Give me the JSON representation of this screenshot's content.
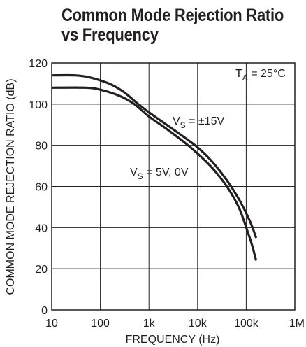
{
  "chart_data": {
    "type": "line",
    "title_lines": [
      "Common Mode Rejection Ratio",
      "vs Frequency"
    ],
    "xlabel": "FREQUENCY (Hz)",
    "ylabel": "COMMON MODE REJECTION RATIO (dB)",
    "xscale": "log",
    "xlim": [
      10,
      1000000
    ],
    "ylim": [
      0,
      120
    ],
    "x_ticks": [
      {
        "value": 10,
        "label": "10"
      },
      {
        "value": 100,
        "label": "100"
      },
      {
        "value": 1000,
        "label": "1k"
      },
      {
        "value": 10000,
        "label": "10k"
      },
      {
        "value": 100000,
        "label": "100k"
      },
      {
        "value": 1000000,
        "label": "1M"
      }
    ],
    "y_ticks": [
      0,
      20,
      40,
      60,
      80,
      100,
      120
    ],
    "grid": true,
    "annotation": {
      "main": "T",
      "sub": "A",
      "rest": " = 25°C"
    },
    "series": [
      {
        "label_main": "V",
        "label_sub": "S",
        "label_rest": " = ±15V",
        "points": [
          [
            10,
            114
          ],
          [
            30,
            114
          ],
          [
            60,
            113
          ],
          [
            150,
            110
          ],
          [
            300,
            106
          ],
          [
            600,
            100
          ],
          [
            1000,
            96
          ],
          [
            2000,
            91
          ],
          [
            4000,
            86
          ],
          [
            10000,
            79
          ],
          [
            20000,
            72
          ],
          [
            40000,
            63
          ],
          [
            70000,
            54
          ],
          [
            100000,
            47
          ],
          [
            130000,
            41
          ],
          [
            160000,
            35
          ]
        ]
      },
      {
        "label_main": "V",
        "label_sub": "S",
        "label_rest": " = 5V, 0V",
        "points": [
          [
            10,
            108
          ],
          [
            50,
            108
          ],
          [
            100,
            107
          ],
          [
            250,
            104
          ],
          [
            500,
            100
          ],
          [
            1000,
            94
          ],
          [
            2000,
            89
          ],
          [
            5000,
            82
          ],
          [
            10000,
            76
          ],
          [
            20000,
            69
          ],
          [
            40000,
            60
          ],
          [
            70000,
            50
          ],
          [
            100000,
            40
          ],
          [
            130000,
            32
          ],
          [
            160000,
            24
          ]
        ]
      }
    ]
  }
}
